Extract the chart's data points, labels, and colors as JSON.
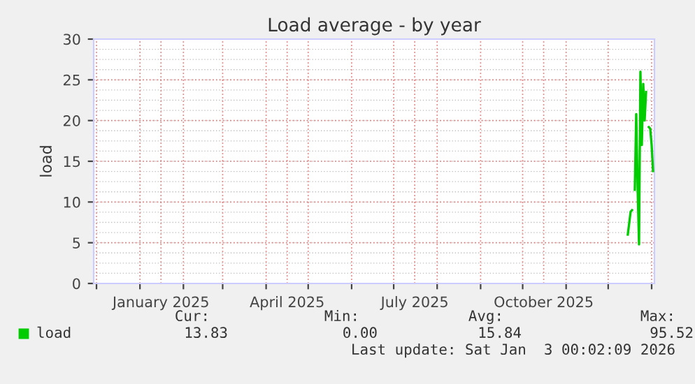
{
  "chart_data": {
    "type": "line",
    "title": "Load average - by year",
    "ylabel": "load",
    "x": [
      "2025-12-15",
      "2025-12-17",
      "2025-12-18",
      "2025-12-19",
      "2025-12-20",
      "2025-12-21",
      "2025-12-22",
      "2025-12-23",
      "2025-12-24",
      "2025-12-25",
      "2025-12-26",
      "2025-12-27",
      "2025-12-28",
      "2025-12-29",
      "2025-12-30",
      "2025-12-31",
      "2026-01-01",
      "2026-01-02"
    ],
    "series": [
      {
        "name": "load",
        "color": "#00cc00",
        "values": [
          6.0,
          8.8,
          9.0,
          null,
          11.5,
          20.8,
          11.8,
          4.8,
          26.0,
          17.0,
          24.5,
          20.0,
          23.5,
          null,
          19.2,
          19.0,
          17.0,
          13.8
        ]
      }
    ],
    "xlim": [
      "2024-11-29",
      "2026-01-03"
    ],
    "xticks": [
      {
        "value": "2024-12-01",
        "label": null
      },
      {
        "value": "2025-01-01",
        "label": null
      },
      {
        "value": "2025-01-16",
        "label": "January 2025"
      },
      {
        "value": "2025-02-01",
        "label": null
      },
      {
        "value": "2025-03-01",
        "label": null
      },
      {
        "value": "2025-04-01",
        "label": null
      },
      {
        "value": "2025-04-16",
        "label": "April 2025"
      },
      {
        "value": "2025-05-01",
        "label": null
      },
      {
        "value": "2025-06-01",
        "label": null
      },
      {
        "value": "2025-07-01",
        "label": null
      },
      {
        "value": "2025-07-16",
        "label": "July 2025"
      },
      {
        "value": "2025-08-01",
        "label": null
      },
      {
        "value": "2025-09-01",
        "label": null
      },
      {
        "value": "2025-10-01",
        "label": null
      },
      {
        "value": "2025-10-16",
        "label": "October 2025"
      },
      {
        "value": "2025-11-01",
        "label": null
      },
      {
        "value": "2025-12-01",
        "label": null
      },
      {
        "value": "2026-01-01",
        "label": null
      }
    ],
    "ylim": [
      0,
      30
    ],
    "yticks": [
      0,
      5,
      10,
      15,
      20,
      25,
      30
    ],
    "grid": true,
    "legend": "bottom",
    "marker": "none",
    "line_style": "solid",
    "annotations": [
      "Cur:",
      "Min:",
      "Avg:",
      "Max:",
      "13.83",
      "0.00",
      "15.84",
      "95.52",
      "Last update: Sat Jan  3 00:02:09 2026"
    ]
  }
}
